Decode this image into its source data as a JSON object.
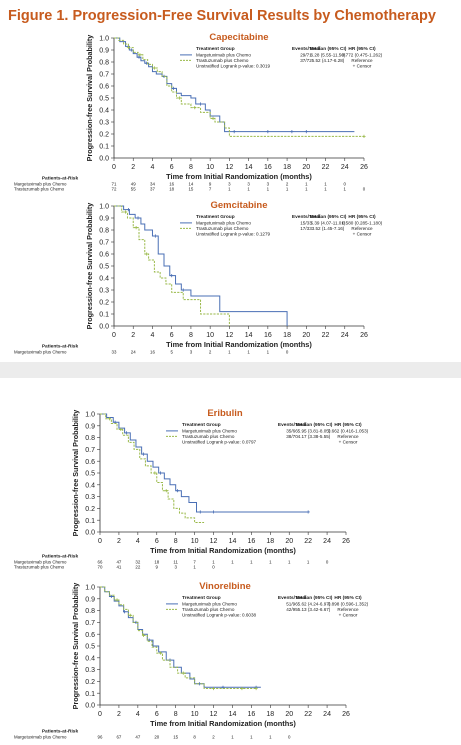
{
  "figure": {
    "title": "Figure 1. Progression-Free Survival Results by Chemotherapy"
  },
  "colors": {
    "title": "#c75b1e",
    "margetuximab": "#4a6fb5",
    "trastuzumab": "#9ab94a"
  },
  "chart_data": [
    {
      "type": "line",
      "title": "Capecitabine",
      "xlabel": "Time from Initial Randomization (months)",
      "ylabel": "Progression-free Survival Probability",
      "xlim": [
        0,
        26
      ],
      "ylim": [
        0,
        1.0
      ],
      "xticks": [
        0,
        2,
        4,
        6,
        8,
        10,
        12,
        14,
        16,
        18,
        20,
        22,
        24,
        26
      ],
      "yticks": [
        0.0,
        0.1,
        0.2,
        0.3,
        0.4,
        0.5,
        0.6,
        0.7,
        0.8,
        0.9,
        1.0
      ],
      "legend": {
        "header": [
          "Treatment Group",
          "Events/Total",
          "Median (95% CI)",
          "HR (95% CI)"
        ],
        "rows": [
          [
            "Margetuximab plus Chemo",
            "29/71",
            "6.28 (5.55-11.50)",
            "0.772 (0.475-1.262)"
          ],
          [
            "Trastuzumab plus Chemo",
            "37/72",
            "5.52 (4.17-6.28)",
            "Reference"
          ]
        ],
        "footnote": "Unstratified Logrank p-value: 0.3019",
        "censor": "+ Censor"
      },
      "series": [
        {
          "name": "Margetuximab plus Chemo",
          "x": [
            0,
            0.6,
            1.2,
            1.6,
            2.0,
            2.4,
            2.8,
            3.2,
            3.6,
            4.0,
            4.4,
            5.0,
            5.5,
            6.0,
            6.5,
            7.0,
            8.0,
            8.5,
            9.5,
            10.0,
            11.0,
            11.5,
            25
          ],
          "y": [
            1.0,
            0.97,
            0.93,
            0.9,
            0.87,
            0.84,
            0.81,
            0.79,
            0.76,
            0.72,
            0.7,
            0.68,
            0.62,
            0.58,
            0.54,
            0.52,
            0.5,
            0.45,
            0.4,
            0.35,
            0.3,
            0.22,
            0.22
          ],
          "censor_x": [
            1.8,
            2.6,
            3.4,
            5.2,
            6.2,
            9.0,
            12.5,
            16.0,
            18.5,
            20.0
          ]
        },
        {
          "name": "Trastuzumab plus Chemo",
          "x": [
            0,
            0.5,
            1.0,
            1.5,
            2.0,
            2.5,
            3.0,
            3.5,
            4.0,
            4.5,
            5.0,
            5.5,
            6.0,
            6.5,
            7.0,
            8.0,
            9.0,
            10.0,
            10.5,
            11.5,
            12.0,
            26
          ],
          "y": [
            1.0,
            0.98,
            0.95,
            0.92,
            0.88,
            0.86,
            0.82,
            0.78,
            0.75,
            0.72,
            0.68,
            0.6,
            0.55,
            0.5,
            0.45,
            0.42,
            0.38,
            0.33,
            0.3,
            0.25,
            0.18,
            0.18
          ],
          "censor_x": [
            1.5,
            2.7,
            4.2,
            6.8,
            8.4,
            10.3,
            26
          ]
        }
      ],
      "at_risk": {
        "label": "Patients-at-Risk",
        "rows": [
          {
            "name": "Margetuximab plus Chemo",
            "values": [
              "71",
              "49",
              "34",
              "16",
              "14",
              "9",
              "3",
              "3",
              "3",
              "2",
              "1",
              "1",
              "0",
              ""
            ]
          },
          {
            "name": "Trastuzumab plus Chemo",
            "values": [
              "72",
              "55",
              "37",
              "18",
              "15",
              "7",
              "1",
              "1",
              "1",
              "1",
              "1",
              "1",
              "1",
              "0"
            ]
          }
        ]
      }
    },
    {
      "type": "line",
      "title": "Gemcitabine",
      "xlabel": "Time from Initial Randomization (months)",
      "ylabel": "Progression-free Survival Probability",
      "xlim": [
        0,
        26
      ],
      "ylim": [
        0,
        1.0
      ],
      "xticks": [
        0,
        2,
        4,
        6,
        8,
        10,
        12,
        14,
        16,
        18,
        20,
        22,
        24,
        26
      ],
      "yticks": [
        0.0,
        0.1,
        0.2,
        0.3,
        0.4,
        0.5,
        0.6,
        0.7,
        0.8,
        0.9,
        1.0
      ],
      "legend": {
        "header": [
          "Treatment Group",
          "Events/Total",
          "Median (95% CI)",
          "HR (95% CI)"
        ],
        "rows": [
          [
            "Margetuximab plus Chemo",
            "15/33",
            "5.39 (4.07-11.01)",
            "0.580 (0.285-1.180)"
          ],
          [
            "Trastuzumab plus Chemo",
            "17/33",
            "3.52 (1.45-7.16)",
            "Reference"
          ]
        ],
        "footnote": "Unstratified Logrank p-value: 0.1279",
        "censor": "+ Censor"
      },
      "series": [
        {
          "name": "Margetuximab plus Chemo",
          "x": [
            0,
            1.0,
            1.6,
            2.2,
            2.8,
            3.2,
            4.0,
            4.6,
            5.2,
            5.8,
            6.4,
            7.0,
            8.0,
            11.0,
            18.0
          ],
          "y": [
            1.0,
            0.97,
            0.93,
            0.9,
            0.85,
            0.8,
            0.75,
            0.6,
            0.5,
            0.42,
            0.35,
            0.3,
            0.25,
            0.12,
            0.0
          ],
          "censor_x": [
            1.5,
            2.5,
            4.3,
            6.0,
            7.2
          ]
        },
        {
          "name": "Trastuzumab plus Chemo",
          "x": [
            0,
            0.8,
            1.4,
            2.0,
            2.6,
            3.2,
            3.6,
            4.2,
            4.8,
            5.4,
            6.0,
            7.2,
            9.0,
            12.0
          ],
          "y": [
            1.0,
            0.95,
            0.9,
            0.82,
            0.72,
            0.6,
            0.55,
            0.45,
            0.4,
            0.35,
            0.28,
            0.22,
            0.1,
            0.0
          ],
          "censor_x": [
            1.2,
            2.3,
            3.4
          ]
        }
      ],
      "at_risk": {
        "label": "Patients-at-Risk",
        "rows": [
          {
            "name": "Margetuximab plus Chemo",
            "values": [
              "33",
              "24",
              "16",
              "5",
              "3",
              "2",
              "1",
              "1",
              "1",
              "0",
              "",
              "",
              "",
              ""
            ]
          }
        ]
      }
    },
    {
      "type": "line",
      "title": "Eribulin",
      "xlabel": "Time from Initial Randomization (months)",
      "ylabel": "Progression-free Survival Probability",
      "xlim": [
        0,
        26
      ],
      "ylim": [
        0,
        1.0
      ],
      "xticks": [
        0,
        2,
        4,
        6,
        8,
        10,
        12,
        14,
        16,
        18,
        20,
        22,
        24,
        26
      ],
      "yticks": [
        0.0,
        0.1,
        0.2,
        0.3,
        0.4,
        0.5,
        0.6,
        0.7,
        0.8,
        0.9,
        1.0
      ],
      "legend": {
        "header": [
          "Treatment Group",
          "Events/Total",
          "Median (95% CI)",
          "HR (95% CI)"
        ],
        "rows": [
          [
            "Margetuximab plus Chemo",
            "35/66",
            "5.95 (3.81-8.05)",
            "0.662 (0.416-1.053)"
          ],
          [
            "Trastuzumab plus Chemo",
            "38/70",
            "4.17 (3.38-5.55)",
            "Reference"
          ]
        ],
        "footnote": "Unstratified Logrank p-value: 0.0797",
        "censor": "+ Censor"
      },
      "series": [
        {
          "name": "Margetuximab plus Chemo",
          "x": [
            0,
            0.7,
            1.4,
            2.0,
            2.6,
            3.2,
            3.8,
            4.4,
            5.0,
            5.6,
            6.2,
            6.8,
            7.4,
            8.0,
            8.6,
            9.4,
            10.2,
            22
          ],
          "y": [
            1.0,
            0.97,
            0.93,
            0.88,
            0.84,
            0.78,
            0.72,
            0.66,
            0.6,
            0.55,
            0.5,
            0.45,
            0.4,
            0.35,
            0.3,
            0.25,
            0.17,
            0.17
          ],
          "censor_x": [
            1.6,
            2.8,
            4.6,
            6.4,
            8.2,
            10.6,
            12.0,
            22.0
          ]
        },
        {
          "name": "Trastuzumab plus Chemo",
          "x": [
            0,
            0.6,
            1.2,
            1.8,
            2.4,
            3.0,
            3.6,
            4.2,
            4.8,
            5.4,
            6.0,
            6.6,
            7.2,
            7.8,
            8.4,
            9.0,
            10.0,
            11.0
          ],
          "y": [
            1.0,
            0.96,
            0.92,
            0.87,
            0.82,
            0.76,
            0.7,
            0.62,
            0.56,
            0.5,
            0.42,
            0.35,
            0.28,
            0.2,
            0.16,
            0.12,
            0.08,
            0.08
          ],
          "censor_x": [
            1.0,
            2.2,
            5.8,
            7.0
          ]
        }
      ],
      "at_risk": {
        "label": "Patients-at-Risk",
        "rows": [
          {
            "name": "Margetuximab plus Chemo",
            "values": [
              "66",
              "47",
              "32",
              "18",
              "11",
              "7",
              "1",
              "1",
              "1",
              "1",
              "1",
              "1",
              "0",
              ""
            ]
          },
          {
            "name": "Trastuzumab plus Chemo",
            "values": [
              "70",
              "41",
              "22",
              "9",
              "3",
              "1",
              "0",
              "",
              "",
              "",
              "",
              "",
              "",
              ""
            ]
          }
        ]
      }
    },
    {
      "type": "line",
      "title": "Vinorelbine",
      "xlabel": "Time from Initial Randomization (months)",
      "ylabel": "Progression-free Survival Probability",
      "xlim": [
        0,
        26
      ],
      "ylim": [
        0,
        1.0
      ],
      "xticks": [
        0,
        2,
        4,
        6,
        8,
        10,
        12,
        14,
        16,
        18,
        20,
        22,
        24,
        26
      ],
      "yticks": [
        0.0,
        0.1,
        0.2,
        0.3,
        0.4,
        0.5,
        0.6,
        0.7,
        0.8,
        0.9,
        1.0
      ],
      "legend": {
        "header": [
          "Treatment Group",
          "Events/Total",
          "Median (95% CI)",
          "HR (95% CI)"
        ],
        "rows": [
          [
            "Margetuximab plus Chemo",
            "51/96",
            "5.62 (4.24-6.97)",
            "0.898 (0.596-1.352)"
          ],
          [
            "Trastuzumab plus Chemo",
            "42/95",
            "5.13 (3.42-6.67)",
            "Reference"
          ]
        ],
        "footnote": "Unstratified Logrank p-value: 0.6038",
        "censor": "+ Censor"
      },
      "series": [
        {
          "name": "Margetuximab plus Chemo",
          "x": [
            0,
            0.5,
            1.0,
            1.5,
            2.0,
            2.5,
            3.0,
            3.5,
            4.0,
            4.5,
            5.0,
            5.6,
            6.2,
            7.0,
            7.8,
            8.6,
            9.5,
            10.0,
            11.0,
            17.0
          ],
          "y": [
            1.0,
            0.96,
            0.92,
            0.88,
            0.84,
            0.79,
            0.74,
            0.7,
            0.64,
            0.6,
            0.55,
            0.5,
            0.45,
            0.38,
            0.32,
            0.27,
            0.22,
            0.18,
            0.15,
            0.15
          ],
          "censor_x": [
            1.2,
            2.6,
            3.8,
            5.2,
            7.4,
            10.5,
            13.0,
            16.5
          ]
        },
        {
          "name": "Trastuzumab plus Chemo",
          "x": [
            0,
            0.5,
            1.0,
            1.5,
            2.0,
            2.5,
            3.0,
            3.5,
            4.0,
            4.5,
            5.0,
            5.5,
            6.0,
            6.6,
            7.4,
            8.2,
            9.0,
            10.0,
            11.0,
            16.5
          ],
          "y": [
            1.0,
            0.96,
            0.93,
            0.89,
            0.85,
            0.81,
            0.76,
            0.7,
            0.63,
            0.59,
            0.54,
            0.49,
            0.44,
            0.38,
            0.32,
            0.27,
            0.23,
            0.18,
            0.14,
            0.14
          ],
          "censor_x": [
            1.8,
            3.2,
            4.6,
            6.4,
            8.8,
            12.0,
            15.0,
            16.5
          ]
        }
      ],
      "at_risk": {
        "label": "Patients-at-Risk",
        "rows": [
          {
            "name": "Margetuximab plus Chemo",
            "values": [
              "96",
              "67",
              "47",
              "20",
              "15",
              "8",
              "2",
              "1",
              "1",
              "1",
              "0",
              "",
              "",
              ""
            ]
          }
        ]
      }
    }
  ]
}
